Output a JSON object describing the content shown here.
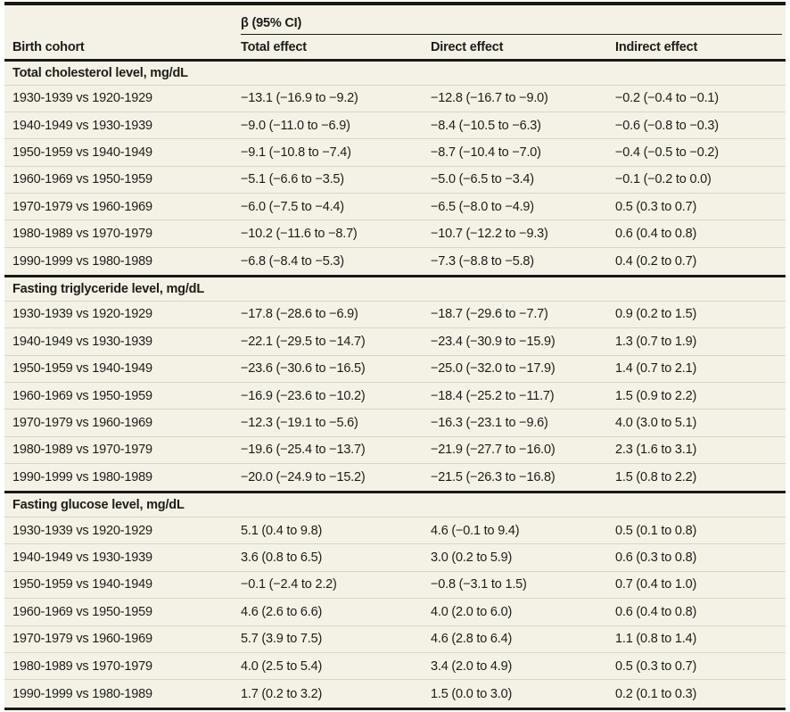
{
  "table": {
    "spanner": "β (95% CI)",
    "columns": [
      "Birth cohort",
      "Total effect",
      "Direct effect",
      "Indirect effect"
    ],
    "colors": {
      "table_background": "#f4f2e6",
      "rule_dark": "#1a1916",
      "row_divider": "#d9d6c6",
      "text": "#1d1c18"
    },
    "sections": [
      {
        "title": "Total cholesterol level, mg/dL",
        "rows": [
          {
            "cohort": "1930-1939 vs 1920-1929",
            "total": "−13.1 (−16.9 to −9.2)",
            "direct": "−12.8 (−16.7 to −9.0)",
            "indirect": "−0.2 (−0.4 to −0.1)"
          },
          {
            "cohort": "1940-1949 vs 1930-1939",
            "total": "−9.0 (−11.0 to −6.9)",
            "direct": "−8.4 (−10.5 to −6.3)",
            "indirect": "−0.6 (−0.8 to −0.3)"
          },
          {
            "cohort": "1950-1959 vs 1940-1949",
            "total": "−9.1 (−10.8 to −7.4)",
            "direct": "−8.7 (−10.4 to −7.0)",
            "indirect": "−0.4 (−0.5 to −0.2)"
          },
          {
            "cohort": "1960-1969 vs 1950-1959",
            "total": "−5.1 (−6.6 to −3.5)",
            "direct": "−5.0 (−6.5 to −3.4)",
            "indirect": "−0.1 (−0.2 to 0.0)"
          },
          {
            "cohort": "1970-1979 vs 1960-1969",
            "total": "−6.0 (−7.5 to −4.4)",
            "direct": "−6.5 (−8.0 to −4.9)",
            "indirect": "0.5 (0.3 to 0.7)"
          },
          {
            "cohort": "1980-1989 vs 1970-1979",
            "total": "−10.2 (−11.6 to −8.7)",
            "direct": "−10.7 (−12.2 to −9.3)",
            "indirect": "0.6 (0.4 to 0.8)"
          },
          {
            "cohort": "1990-1999 vs 1980-1989",
            "total": "−6.8 (−8.4 to −5.3)",
            "direct": "−7.3 (−8.8 to −5.8)",
            "indirect": "0.4 (0.2 to 0.7)"
          }
        ]
      },
      {
        "title": "Fasting triglyceride level, mg/dL",
        "rows": [
          {
            "cohort": "1930-1939 vs 1920-1929",
            "total": "−17.8 (−28.6 to −6.9)",
            "direct": "−18.7 (−29.6 to −7.7)",
            "indirect": "0.9 (0.2 to 1.5)"
          },
          {
            "cohort": "1940-1949 vs 1930-1939",
            "total": "−22.1 (−29.5 to −14.7)",
            "direct": "−23.4 (−30.9 to −15.9)",
            "indirect": "1.3 (0.7 to 1.9)"
          },
          {
            "cohort": "1950-1959 vs 1940-1949",
            "total": "−23.6 (−30.6 to −16.5)",
            "direct": "−25.0 (−32.0 to −17.9)",
            "indirect": "1.4 (0.7 to 2.1)"
          },
          {
            "cohort": "1960-1969 vs 1950-1959",
            "total": "−16.9 (−23.6 to −10.2)",
            "direct": "−18.4 (−25.2 to −11.7)",
            "indirect": "1.5 (0.9 to 2.2)"
          },
          {
            "cohort": "1970-1979 vs 1960-1969",
            "total": "−12.3 (−19.1 to −5.6)",
            "direct": "−16.3 (−23.1 to −9.6)",
            "indirect": "4.0 (3.0 to 5.1)"
          },
          {
            "cohort": "1980-1989 vs 1970-1979",
            "total": "−19.6 (−25.4 to −13.7)",
            "direct": "−21.9 (−27.7 to −16.0)",
            "indirect": "2.3 (1.6 to 3.1)"
          },
          {
            "cohort": "1990-1999 vs 1980-1989",
            "total": "−20.0 (−24.9 to −15.2)",
            "direct": "−21.5 (−26.3 to −16.8)",
            "indirect": "1.5 (0.8 to 2.2)"
          }
        ]
      },
      {
        "title": "Fasting glucose level, mg/dL",
        "rows": [
          {
            "cohort": "1930-1939 vs 1920-1929",
            "total": "5.1 (0.4 to 9.8)",
            "direct": "4.6 (−0.1 to 9.4)",
            "indirect": "0.5 (0.1 to 0.8)"
          },
          {
            "cohort": "1940-1949 vs 1930-1939",
            "total": "3.6 (0.8 to 6.5)",
            "direct": "3.0 (0.2 to 5.9)",
            "indirect": "0.6 (0.3 to 0.8)"
          },
          {
            "cohort": "1950-1959 vs 1940-1949",
            "total": "−0.1 (−2.4 to 2.2)",
            "direct": "−0.8 (−3.1 to 1.5)",
            "indirect": "0.7 (0.4 to 1.0)"
          },
          {
            "cohort": "1960-1969 vs 1950-1959",
            "total": "4.6 (2.6 to 6.6)",
            "direct": "4.0 (2.0 to 6.0)",
            "indirect": "0.6 (0.4 to 0.8)"
          },
          {
            "cohort": "1970-1979 vs 1960-1969",
            "total": "5.7 (3.9 to 7.5)",
            "direct": "4.6 (2.8 to 6.4)",
            "indirect": "1.1 (0.8 to 1.4)"
          },
          {
            "cohort": "1980-1989 vs 1970-1979",
            "total": "4.0 (2.5 to 5.4)",
            "direct": "3.4 (2.0 to 4.9)",
            "indirect": "0.5 (0.3 to 0.7)"
          },
          {
            "cohort": "1990-1999 vs 1980-1989",
            "total": "1.7 (0.2 to 3.2)",
            "direct": "1.5 (0.0 to 3.0)",
            "indirect": "0.2 (0.1 to 0.3)"
          }
        ]
      }
    ]
  }
}
